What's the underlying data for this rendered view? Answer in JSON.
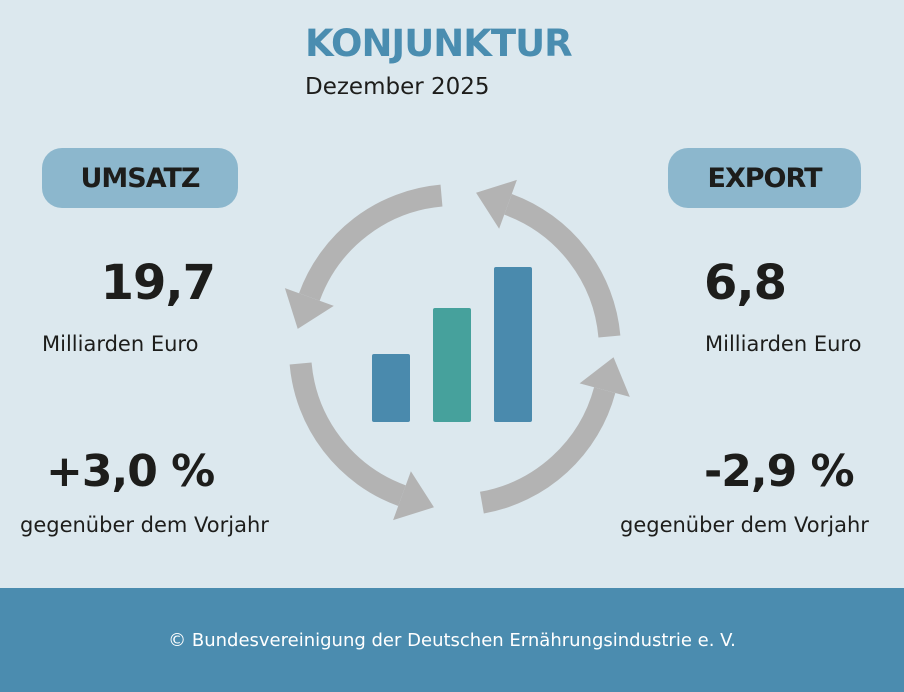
{
  "header": {
    "title": "KONJUNKTUR",
    "subtitle": "Dezember 2025"
  },
  "umsatz": {
    "label": "UMSATZ",
    "value": "19,7",
    "unit": "Milliarden Euro",
    "change": "+3,0 %",
    "reference": "gegenüber dem Vorjahr"
  },
  "export": {
    "label": "EXPORT",
    "value": "6,8",
    "unit": "Milliarden Euro",
    "change": "-2,9 %",
    "reference": "gegenüber dem Vorjahr"
  },
  "icon": {
    "name": "cycle-arrows-bar-chart-icon",
    "arrow_color": "#b3b3b3",
    "bar_colors": [
      "#4a8aad",
      "#46a19c",
      "#4a8aad"
    ]
  },
  "footer": {
    "copyright": "© Bundesvereinigung der Deutschen Ernährungsindustrie e. V."
  },
  "colors": {
    "background": "#dce8ee",
    "accent": "#4b8caf",
    "pill": "#8cb7cd"
  }
}
